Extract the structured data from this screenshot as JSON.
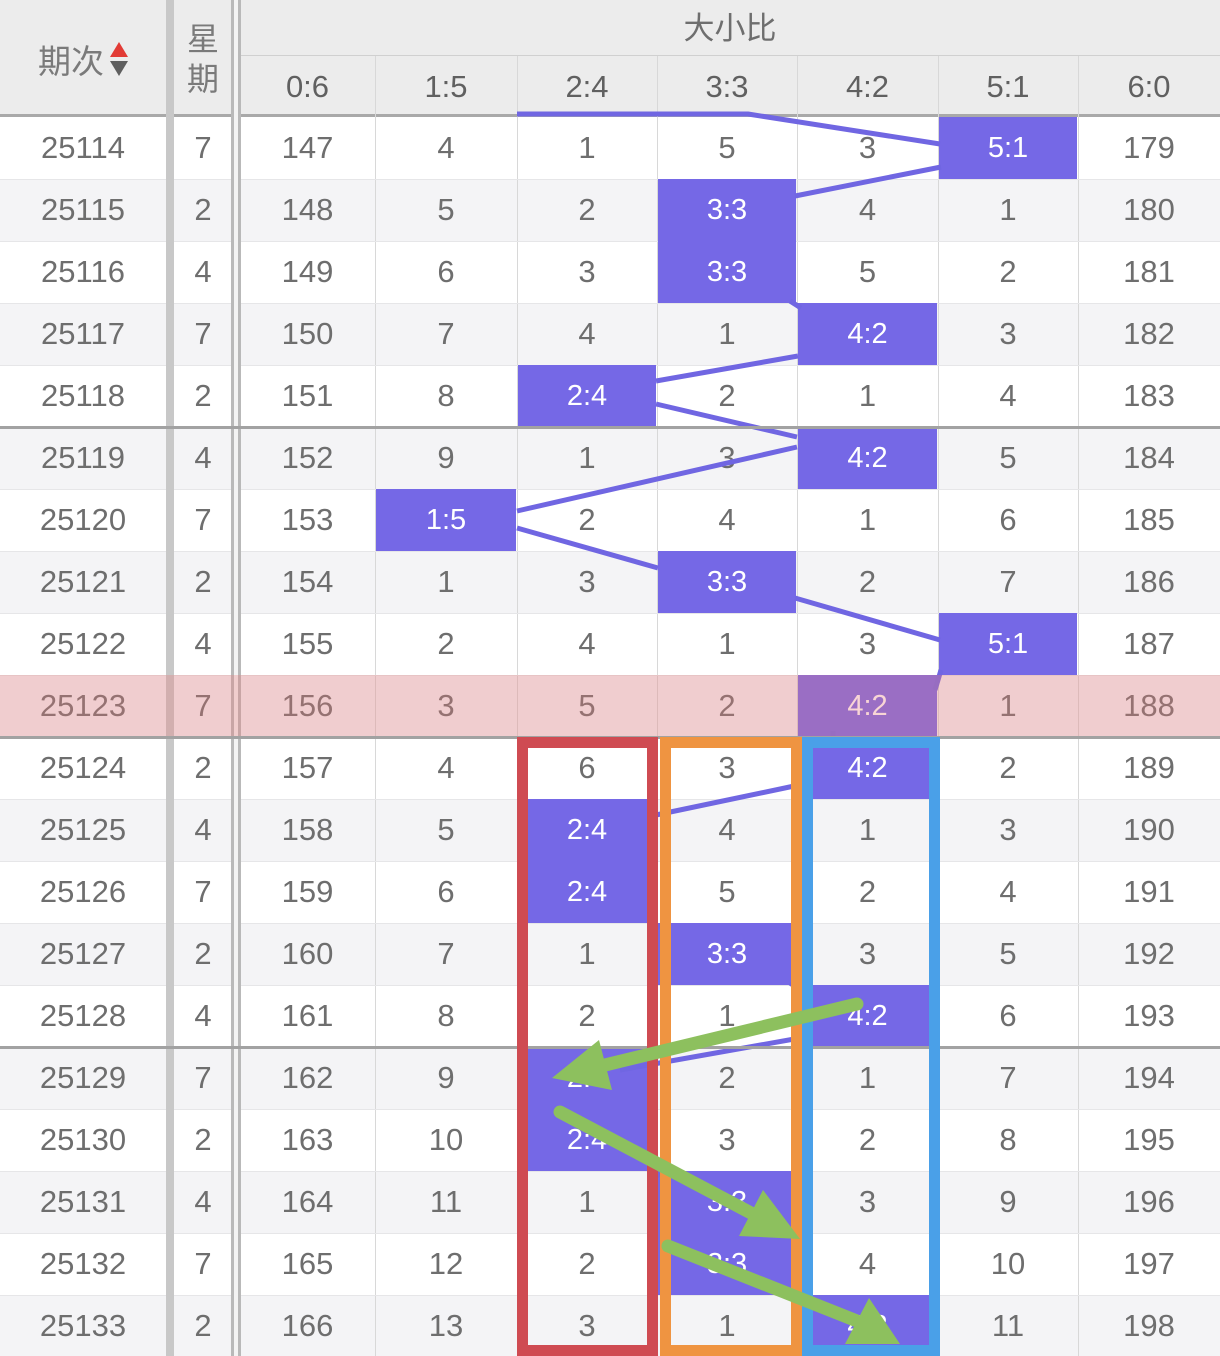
{
  "header": {
    "period_label": "期次",
    "week_label_chars": [
      "星",
      "期"
    ],
    "group_label": "大小比",
    "ratio_columns": [
      "0:6",
      "1:5",
      "2:4",
      "3:3",
      "4:2",
      "5:1",
      "6:0"
    ]
  },
  "rows": [
    {
      "period": "25114",
      "week": "7",
      "cells": [
        "147",
        "4",
        "1",
        "5",
        "3",
        "5:1",
        "179"
      ],
      "hit": 5
    },
    {
      "period": "25115",
      "week": "2",
      "cells": [
        "148",
        "5",
        "2",
        "3:3",
        "4",
        "1",
        "180"
      ],
      "hit": 3
    },
    {
      "period": "25116",
      "week": "4",
      "cells": [
        "149",
        "6",
        "3",
        "3:3",
        "5",
        "2",
        "181"
      ],
      "hit": 3
    },
    {
      "period": "25117",
      "week": "7",
      "cells": [
        "150",
        "7",
        "4",
        "1",
        "4:2",
        "3",
        "182"
      ],
      "hit": 4
    },
    {
      "period": "25118",
      "week": "2",
      "cells": [
        "151",
        "8",
        "2:4",
        "2",
        "1",
        "4",
        "183"
      ],
      "hit": 2
    },
    {
      "period": "25119",
      "week": "4",
      "cells": [
        "152",
        "9",
        "1",
        "3",
        "4:2",
        "5",
        "184"
      ],
      "hit": 4
    },
    {
      "period": "25120",
      "week": "7",
      "cells": [
        "153",
        "1:5",
        "2",
        "4",
        "1",
        "6",
        "185"
      ],
      "hit": 1
    },
    {
      "period": "25121",
      "week": "2",
      "cells": [
        "154",
        "1",
        "3",
        "3:3",
        "2",
        "7",
        "186"
      ],
      "hit": 3
    },
    {
      "period": "25122",
      "week": "4",
      "cells": [
        "155",
        "2",
        "4",
        "1",
        "3",
        "5:1",
        "187"
      ],
      "hit": 5
    },
    {
      "period": "25123",
      "week": "7",
      "cells": [
        "156",
        "3",
        "5",
        "2",
        "4:2",
        "1",
        "188"
      ],
      "hit": 4,
      "selected": true
    },
    {
      "period": "25124",
      "week": "2",
      "cells": [
        "157",
        "4",
        "6",
        "3",
        "4:2",
        "2",
        "189"
      ],
      "hit": 4
    },
    {
      "period": "25125",
      "week": "4",
      "cells": [
        "158",
        "5",
        "2:4",
        "4",
        "1",
        "3",
        "190"
      ],
      "hit": 2
    },
    {
      "period": "25126",
      "week": "7",
      "cells": [
        "159",
        "6",
        "2:4",
        "5",
        "2",
        "4",
        "191"
      ],
      "hit": 2
    },
    {
      "period": "25127",
      "week": "2",
      "cells": [
        "160",
        "7",
        "1",
        "3:3",
        "3",
        "5",
        "192"
      ],
      "hit": 3
    },
    {
      "period": "25128",
      "week": "4",
      "cells": [
        "161",
        "8",
        "2",
        "1",
        "4:2",
        "6",
        "193"
      ],
      "hit": 4
    },
    {
      "period": "25129",
      "week": "7",
      "cells": [
        "162",
        "9",
        "2:4",
        "2",
        "1",
        "7",
        "194"
      ],
      "hit": 2
    },
    {
      "period": "25130",
      "week": "2",
      "cells": [
        "163",
        "10",
        "2:4",
        "3",
        "2",
        "8",
        "195"
      ],
      "hit": 2
    },
    {
      "period": "25131",
      "week": "4",
      "cells": [
        "164",
        "11",
        "1",
        "3:3",
        "3",
        "9",
        "196"
      ],
      "hit": 3
    },
    {
      "period": "25132",
      "week": "7",
      "cells": [
        "165",
        "12",
        "2",
        "3:3",
        "4",
        "10",
        "197"
      ],
      "hit": 3
    },
    {
      "period": "25133",
      "week": "2",
      "cells": [
        "166",
        "13",
        "3",
        "1",
        "4:2",
        "11",
        "198"
      ],
      "hit": 4
    }
  ],
  "annotations": {
    "highlight_color": "#7568e6",
    "connector_color": "#7066e2",
    "selected_row_overlay": "rgba(232,124,124,0.32)",
    "column_boxes": [
      {
        "column": "2:4",
        "color": "#cf4b52"
      },
      {
        "column": "3:3",
        "color": "#ef9441"
      },
      {
        "column": "4:2",
        "color": "#4aa0e8"
      }
    ],
    "trend_arrow_color": "#8dc05e",
    "sort_icon_colors": {
      "up": "#e23b35",
      "down": "#5f5f5f"
    }
  }
}
